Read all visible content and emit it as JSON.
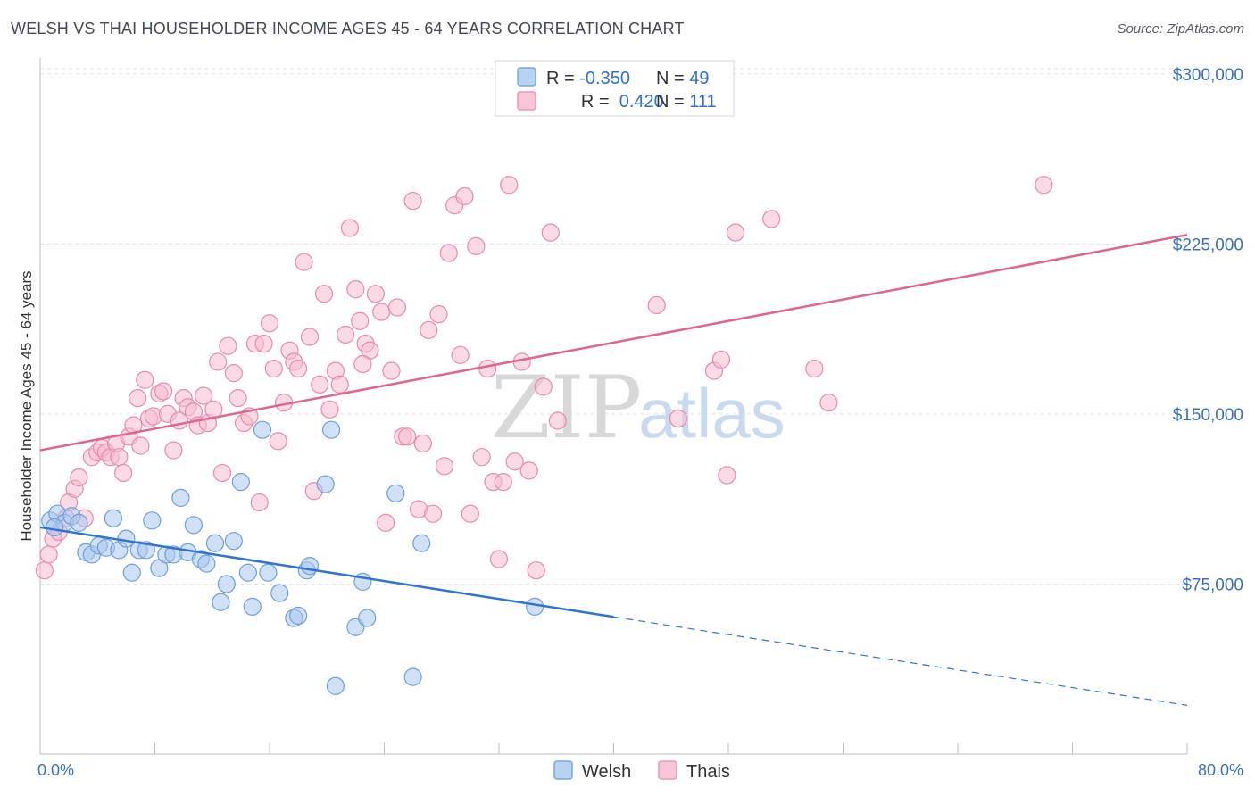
{
  "title": "WELSH VS THAI HOUSEHOLDER INCOME AGES 45 - 64 YEARS CORRELATION CHART",
  "source": "Source: ZipAtlas.com",
  "watermark": {
    "zip": "ZIP",
    "atlas": "atlas"
  },
  "colors": {
    "welsh_fill": "#a9c8f0",
    "welsh_stroke": "#6f9fd8",
    "welsh_line": "#2f74d0",
    "thai_fill": "#f6bcd0",
    "thai_stroke": "#e88aaa",
    "thai_line": "#e0648e",
    "tick_text": "#3a6fc4",
    "grid": "#e3e3e3"
  },
  "legend_top": {
    "rows": [
      {
        "r_label": "R = ",
        "r_value": "-0.350",
        "n_label": "N = ",
        "n_value": "49"
      },
      {
        "r_label": "R = ",
        "r_value": " 0.420",
        "n_label": "N = ",
        "n_value": "111"
      }
    ]
  },
  "legend_bottom": {
    "items": [
      "Welsh",
      "Thais"
    ]
  },
  "chart_data": {
    "type": "scatter",
    "title": "WELSH VS THAI HOUSEHOLDER INCOME AGES 45 - 64 YEARS CORRELATION CHART",
    "xlabel": "",
    "ylabel": "Householder Income Ages 45 - 64 years",
    "xlim": [
      0,
      80
    ],
    "ylim": [
      0,
      307000
    ],
    "x_tick_labels": [
      "0.0%",
      "80.0%"
    ],
    "y_ticks": [
      75000,
      150000,
      225000,
      300000
    ],
    "y_tick_labels": [
      "$75,000",
      "$150,000",
      "$225,000",
      "$300,000"
    ],
    "grid": true,
    "series": [
      {
        "name": "Welsh",
        "r": -0.35,
        "n": 49,
        "trend": {
          "x0": 0,
          "y0": 100000,
          "x1": 40,
          "y1": 60500,
          "dash_x1": 80,
          "dash_y1": 21500
        },
        "points": [
          [
            0.7,
            103000
          ],
          [
            1.2,
            106000
          ],
          [
            1.7,
            102000
          ],
          [
            2.2,
            105000
          ],
          [
            2.7,
            102000
          ],
          [
            3.2,
            89000
          ],
          [
            3.6,
            88000
          ],
          [
            4.1,
            92000
          ],
          [
            4.6,
            91000
          ],
          [
            5.1,
            104000
          ],
          [
            5.5,
            90000
          ],
          [
            6.0,
            95000
          ],
          [
            6.4,
            80000
          ],
          [
            6.9,
            90000
          ],
          [
            7.4,
            90000
          ],
          [
            7.8,
            103000
          ],
          [
            8.3,
            82000
          ],
          [
            8.8,
            88000
          ],
          [
            9.3,
            88000
          ],
          [
            9.8,
            113000
          ],
          [
            10.3,
            89000
          ],
          [
            10.7,
            101000
          ],
          [
            11.2,
            86000
          ],
          [
            11.6,
            84000
          ],
          [
            12.2,
            93000
          ],
          [
            12.6,
            67000
          ],
          [
            13.0,
            75000
          ],
          [
            13.5,
            94000
          ],
          [
            14.0,
            120000
          ],
          [
            14.5,
            80000
          ],
          [
            14.8,
            65000
          ],
          [
            15.5,
            143000
          ],
          [
            15.9,
            80000
          ],
          [
            16.7,
            71000
          ],
          [
            17.7,
            60000
          ],
          [
            18.0,
            61000
          ],
          [
            18.6,
            81000
          ],
          [
            18.8,
            83000
          ],
          [
            19.9,
            119000
          ],
          [
            20.3,
            143000
          ],
          [
            20.6,
            30000
          ],
          [
            22.0,
            56000
          ],
          [
            22.5,
            76000
          ],
          [
            22.8,
            60000
          ],
          [
            24.8,
            115000
          ],
          [
            26.0,
            34000
          ],
          [
            26.6,
            93000
          ],
          [
            34.5,
            65000
          ],
          [
            1.0,
            100000
          ]
        ]
      },
      {
        "name": "Thais",
        "r": 0.42,
        "n": 111,
        "trend": {
          "x0": 0,
          "y0": 134000,
          "x1": 80,
          "y1": 229000
        },
        "points": [
          [
            0.3,
            81000
          ],
          [
            0.6,
            88000
          ],
          [
            0.9,
            95000
          ],
          [
            1.3,
            98000
          ],
          [
            1.8,
            104000
          ],
          [
            2.0,
            111000
          ],
          [
            2.4,
            117000
          ],
          [
            2.7,
            122000
          ],
          [
            3.1,
            104000
          ],
          [
            3.6,
            131000
          ],
          [
            4.0,
            133000
          ],
          [
            4.3,
            135000
          ],
          [
            4.6,
            133000
          ],
          [
            4.9,
            131000
          ],
          [
            5.3,
            137000
          ],
          [
            5.5,
            131000
          ],
          [
            5.8,
            124000
          ],
          [
            6.2,
            140000
          ],
          [
            6.5,
            145000
          ],
          [
            6.8,
            157000
          ],
          [
            7.0,
            136000
          ],
          [
            7.3,
            165000
          ],
          [
            7.6,
            148000
          ],
          [
            7.9,
            149000
          ],
          [
            8.3,
            159000
          ],
          [
            8.6,
            160000
          ],
          [
            8.9,
            150000
          ],
          [
            9.3,
            134000
          ],
          [
            9.7,
            147000
          ],
          [
            10.0,
            157000
          ],
          [
            10.3,
            153000
          ],
          [
            10.7,
            151000
          ],
          [
            11.0,
            145000
          ],
          [
            11.4,
            158000
          ],
          [
            11.7,
            146000
          ],
          [
            12.1,
            152000
          ],
          [
            12.4,
            173000
          ],
          [
            12.7,
            124000
          ],
          [
            13.1,
            180000
          ],
          [
            13.5,
            168000
          ],
          [
            13.8,
            157000
          ],
          [
            14.2,
            146000
          ],
          [
            14.6,
            149000
          ],
          [
            15.0,
            181000
          ],
          [
            15.3,
            111000
          ],
          [
            15.6,
            181000
          ],
          [
            16.0,
            190000
          ],
          [
            16.3,
            170000
          ],
          [
            16.6,
            138000
          ],
          [
            17.0,
            155000
          ],
          [
            17.4,
            178000
          ],
          [
            17.7,
            173000
          ],
          [
            18.0,
            170000
          ],
          [
            18.4,
            217000
          ],
          [
            18.8,
            184000
          ],
          [
            19.1,
            116000
          ],
          [
            19.5,
            163000
          ],
          [
            19.8,
            203000
          ],
          [
            20.2,
            152000
          ],
          [
            20.6,
            169000
          ],
          [
            20.9,
            163000
          ],
          [
            21.3,
            185000
          ],
          [
            21.6,
            232000
          ],
          [
            22.0,
            205000
          ],
          [
            22.3,
            191000
          ],
          [
            22.7,
            181000
          ],
          [
            23.0,
            178000
          ],
          [
            23.4,
            203000
          ],
          [
            23.8,
            195000
          ],
          [
            24.1,
            102000
          ],
          [
            24.5,
            169000
          ],
          [
            24.9,
            197000
          ],
          [
            25.3,
            140000
          ],
          [
            25.6,
            140000
          ],
          [
            26.0,
            244000
          ],
          [
            26.4,
            108000
          ],
          [
            26.7,
            137000
          ],
          [
            27.1,
            187000
          ],
          [
            27.4,
            106000
          ],
          [
            27.8,
            194000
          ],
          [
            28.2,
            127000
          ],
          [
            28.5,
            221000
          ],
          [
            28.9,
            242000
          ],
          [
            29.3,
            176000
          ],
          [
            29.6,
            246000
          ],
          [
            30.0,
            106000
          ],
          [
            30.4,
            224000
          ],
          [
            30.8,
            131000
          ],
          [
            31.2,
            170000
          ],
          [
            31.6,
            120000
          ],
          [
            32.0,
            86000
          ],
          [
            32.3,
            120000
          ],
          [
            32.7,
            251000
          ],
          [
            33.1,
            129000
          ],
          [
            33.6,
            173000
          ],
          [
            34.1,
            125000
          ],
          [
            34.6,
            81000
          ],
          [
            35.1,
            162000
          ],
          [
            35.6,
            230000
          ],
          [
            36.1,
            147000
          ],
          [
            43.0,
            198000
          ],
          [
            44.5,
            148000
          ],
          [
            47.0,
            169000
          ],
          [
            47.5,
            174000
          ],
          [
            47.9,
            123000
          ],
          [
            48.5,
            230000
          ],
          [
            51.0,
            236000
          ],
          [
            54.0,
            170000
          ],
          [
            55.0,
            155000
          ],
          [
            70.0,
            251000
          ],
          [
            22.5,
            172000
          ]
        ]
      }
    ]
  }
}
